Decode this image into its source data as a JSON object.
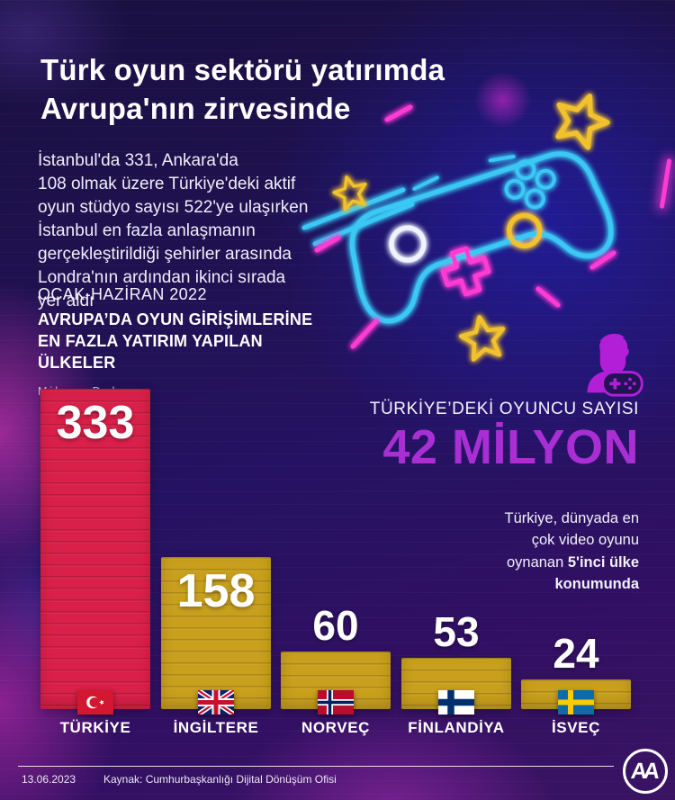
{
  "header": {
    "title": "Türk oyun sektörü yatırımda\nAvrupa'nın zirvesinde"
  },
  "intro": {
    "text": "İstanbul'da 331, Ankara'da\n108 olmak üzere Türkiye'deki aktif\noyun stüdyo sayısı 522'ye ulaşırken\nİstanbul en fazla anlaşmanın\ngerçekleştirildiği şehirler arasında\nLondra'nın ardından ikinci sırada\nyer aldı"
  },
  "chart_header": {
    "period": "OCAK-HAZİRAN 2022",
    "title": "AVRUPA’DA OYUN GİRİŞİMLERİNE\nEN FAZLA YATIRIM YAPILAN\nÜLKELER",
    "unit": "Milyon Dolar"
  },
  "chart_data": {
    "type": "bar",
    "title": "Avrupa'da oyun girişimlerine en fazla yatırım yapılan ülkeler",
    "period": "Ocak-Haziran 2022",
    "unit": "Milyon Dolar",
    "categories": [
      "TÜRKİYE",
      "İNGİLTERE",
      "NORVEÇ",
      "FİNLANDİYA",
      "İSVEÇ"
    ],
    "values": [
      333,
      158,
      60,
      53,
      24
    ],
    "flags": [
      "turkey",
      "uk",
      "norway",
      "finland",
      "sweden"
    ],
    "bar_colors": [
      "#d92049",
      "#c9a01d",
      "#c9a01d",
      "#c9a01d",
      "#c9a01d"
    ],
    "value_label_color": "#ffffff",
    "ylim": [
      0,
      333
    ],
    "grid": false,
    "legend": false
  },
  "players": {
    "label": "TÜRKİYE’DEKİ OYUNCU SAYISI",
    "value": "42 MİLYON",
    "value_color": "#a92fd4"
  },
  "rank_note": {
    "normal": "Türkiye, dünyada en\nçok video oyunu\noynanan ",
    "bold": "5'inci ülke\nkonumunda"
  },
  "footer": {
    "date": "13.06.2023",
    "source": "Kaynak: Cumhurbaşkanlığı Dijital Dönüşüm Ofisi",
    "logo_text": "AA"
  },
  "icons": {
    "hero_illustration": "neon-gamepad-with-stars",
    "players_icon": "gamer-with-controller",
    "footer_logo": "anadolu-agency-monogram"
  },
  "colors": {
    "accent_magenta": "#a92fd4",
    "neon_cyan": "#3ac8f5",
    "neon_yellow": "#f2c22e",
    "neon_pink": "#ff3bd4",
    "bar_red": "#d92049",
    "bar_gold": "#c9a01d"
  }
}
